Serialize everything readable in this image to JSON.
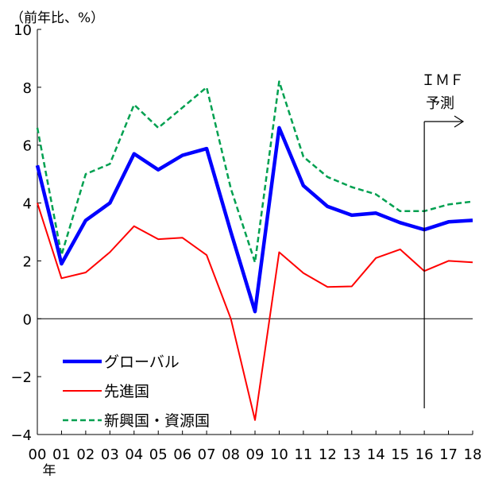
{
  "chart_data": {
    "type": "line",
    "title": "",
    "ylabel": "（前年比、%）",
    "xlabel": "年",
    "ylim": [
      -4,
      10
    ],
    "yticks": [
      -4,
      -2,
      0,
      2,
      4,
      6,
      8,
      10
    ],
    "ytick_labels": [
      "−4",
      "−2",
      "0",
      "2",
      "4",
      "6",
      "8",
      "10"
    ],
    "categories": [
      "00",
      "01",
      "02",
      "03",
      "04",
      "05",
      "06",
      "07",
      "08",
      "09",
      "10",
      "11",
      "12",
      "13",
      "14",
      "15",
      "16",
      "17",
      "18"
    ],
    "grid": false,
    "legend_position": "bottom-left",
    "annotation": {
      "line1": "ＩＭＦ",
      "line2": "予測",
      "start_category": "16",
      "label": "IMF forecast marker"
    },
    "series": [
      {
        "name": "グローバル",
        "color": "#0000FF",
        "style": "solid-thick",
        "values": [
          5.3,
          1.9,
          3.4,
          4.0,
          5.7,
          5.15,
          5.65,
          5.88,
          3.0,
          0.25,
          6.6,
          4.6,
          3.88,
          3.58,
          3.65,
          3.32,
          3.08,
          3.35,
          3.4
        ]
      },
      {
        "name": "先進国",
        "color": "#FF0000",
        "style": "solid",
        "values": [
          4.0,
          1.4,
          1.6,
          2.3,
          3.2,
          2.75,
          2.8,
          2.2,
          0.0,
          -3.5,
          2.3,
          1.58,
          1.1,
          1.12,
          2.1,
          2.4,
          1.65,
          2.0,
          1.95
        ]
      },
      {
        "name": "新興国・資源国",
        "color": "#00A050",
        "style": "dashed",
        "values": [
          6.6,
          2.2,
          5.0,
          5.35,
          7.4,
          6.6,
          7.3,
          8.0,
          4.5,
          1.95,
          8.2,
          5.6,
          4.9,
          4.55,
          4.3,
          3.72,
          3.72,
          3.95,
          4.05
        ]
      }
    ]
  }
}
